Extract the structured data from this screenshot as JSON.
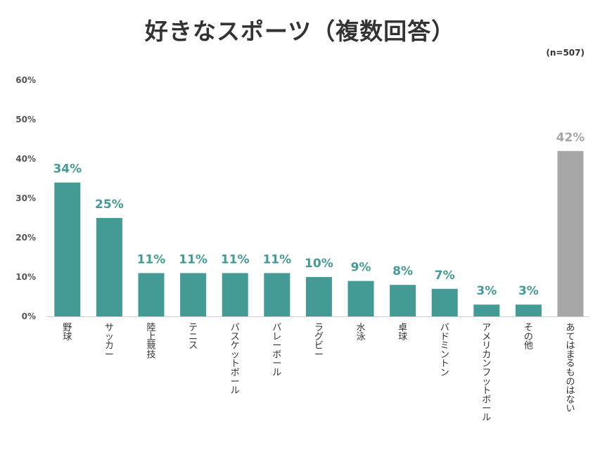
{
  "title": "好きなスポーツ（複数回答）",
  "sample_note": "(n=507)",
  "colors": {
    "teal": "#449a95",
    "gray": "#a6a6a6",
    "text": "#333333"
  },
  "chart_data": {
    "type": "bar",
    "title": "好きなスポーツ（複数回答）",
    "xlabel": "",
    "ylabel": "",
    "ylim": [
      0,
      60
    ],
    "yticks": [
      "0%",
      "10%",
      "20%",
      "30%",
      "40%",
      "50%",
      "60%"
    ],
    "grid": false,
    "categories": [
      "野球",
      "サッカー",
      "陸上競技",
      "テニス",
      "バスケットボール",
      "バレーボール",
      "ラグビー",
      "水泳",
      "卓球",
      "バドミントン",
      "アメリカンフットボール",
      "その他",
      "あてはまるものはない"
    ],
    "values": [
      34,
      25,
      11,
      11,
      11,
      11,
      10,
      9,
      8,
      7,
      3,
      3,
      42
    ],
    "data_labels": [
      "34%",
      "25%",
      "11%",
      "11%",
      "11%",
      "11%",
      "10%",
      "9%",
      "8%",
      "7%",
      "3%",
      "3%",
      "42%"
    ],
    "bar_colors": [
      "#449a95",
      "#449a95",
      "#449a95",
      "#449a95",
      "#449a95",
      "#449a95",
      "#449a95",
      "#449a95",
      "#449a95",
      "#449a95",
      "#449a95",
      "#449a95",
      "#a6a6a6"
    ]
  }
}
